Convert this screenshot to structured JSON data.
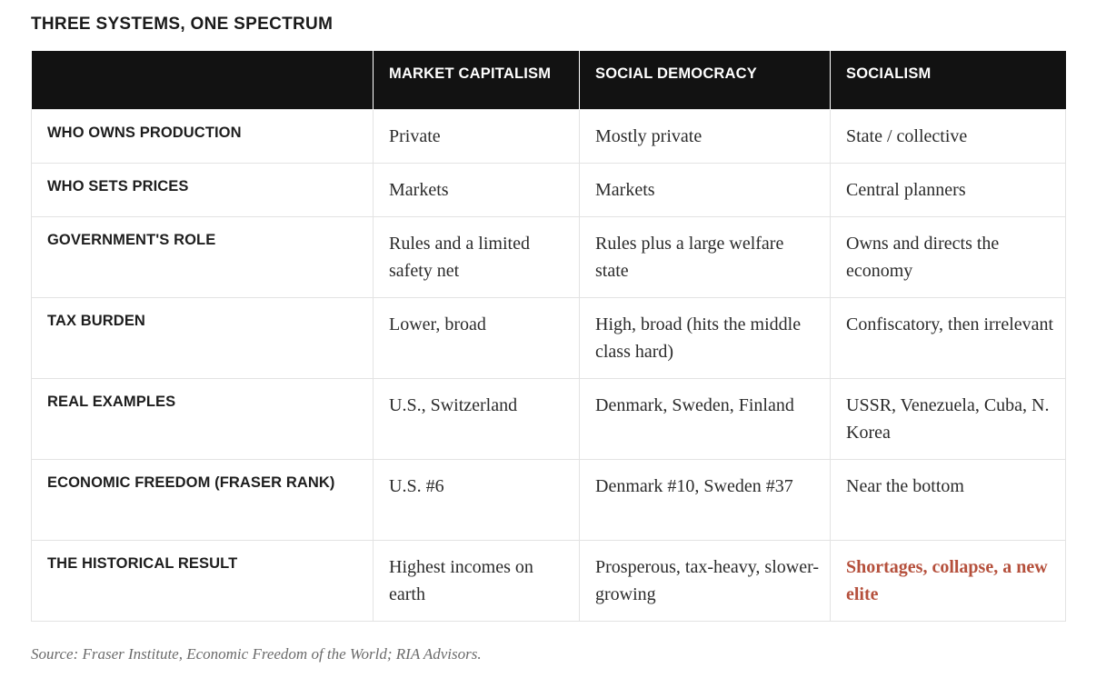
{
  "title": "THREE SYSTEMS, ONE SPECTRUM",
  "columns": [
    "",
    "MARKET CAPITALISM",
    "SOCIAL DEMOCRACY",
    "SOCIALISM"
  ],
  "rows": [
    {
      "label": "WHO OWNS PRODUCTION",
      "values": [
        "Private",
        "Mostly private",
        "State / collective"
      ]
    },
    {
      "label": "WHO SETS PRICES",
      "values": [
        "Markets",
        "Markets",
        "Central planners"
      ]
    },
    {
      "label": "GOVERNMENT'S ROLE",
      "values": [
        "Rules and a limited safety net",
        "Rules plus a large welfare state",
        "Owns and directs the economy"
      ]
    },
    {
      "label": "TAX BURDEN",
      "values": [
        "Lower, broad",
        "High, broad (hits the middle class hard)",
        "Confiscatory, then irrelevant"
      ]
    },
    {
      "label": "REAL EXAMPLES",
      "values": [
        "U.S., Switzerland",
        "Denmark, Sweden, Finland",
        "USSR, Venezuela, Cuba, N. Korea"
      ]
    },
    {
      "label": "ECONOMIC FREEDOM (FRASER RANK)",
      "values": [
        "U.S. #6",
        "Denmark #10, Sweden #37",
        "Near the bottom"
      ]
    },
    {
      "label": "THE HISTORICAL RESULT",
      "values": [
        "Highest incomes on earth",
        "Prosperous, tax-heavy, slower-growing",
        "Shortages, collapse, a new elite"
      ]
    }
  ],
  "source": "Source: Fraser Institute, Economic Freedom of the World; RIA Advisors.",
  "colors": {
    "header_bg": "#121212",
    "header_text": "#ffffff",
    "emphasis": "#b5503c",
    "source_text": "#6b6b6b"
  }
}
